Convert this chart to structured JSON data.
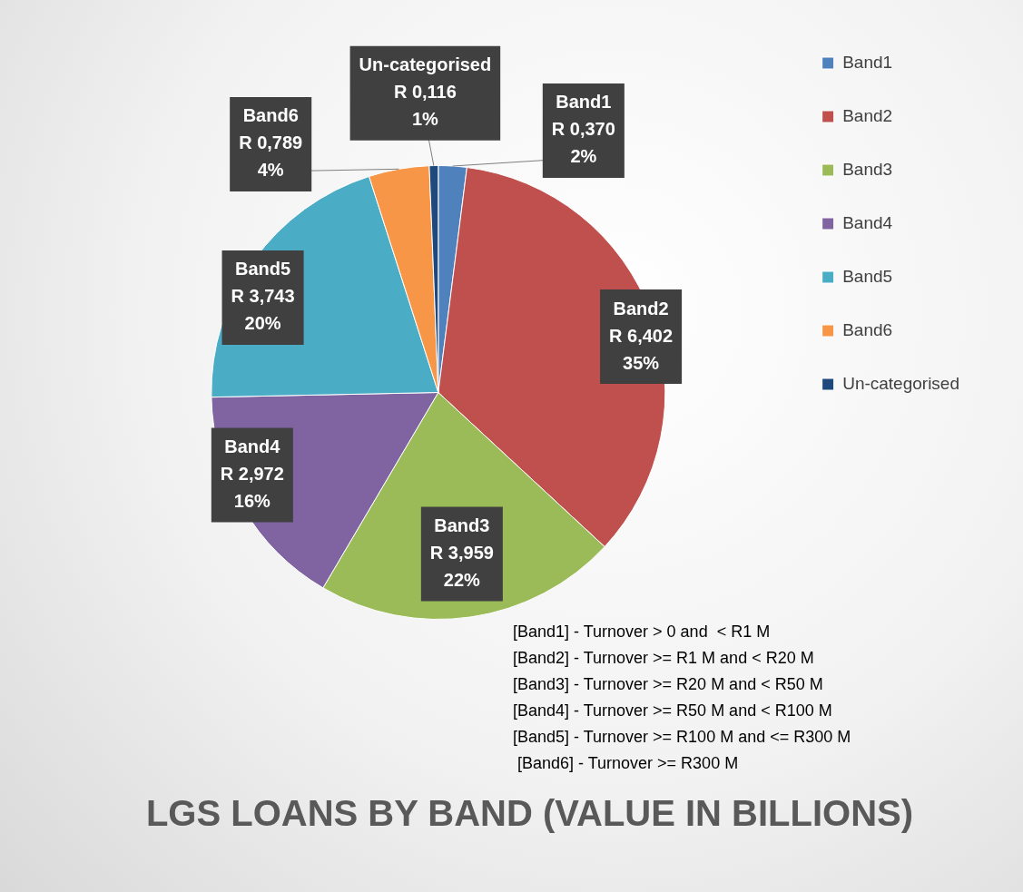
{
  "chart_data": {
    "type": "pie",
    "title": "LGS LOANS BY BAND (VALUE IN BILLIONS)",
    "categories": [
      "Band1",
      "Band2",
      "Band3",
      "Band4",
      "Band5",
      "Band6",
      "Un-categorised"
    ],
    "values": [
      0.37,
      6.402,
      3.959,
      2.972,
      3.743,
      0.789,
      0.116
    ],
    "colors": [
      "#4f81bd",
      "#c0504d",
      "#9bbb59",
      "#8064a2",
      "#4bacc6",
      "#f79646",
      "#1f497d"
    ],
    "value_labels": [
      "R 0,370\n2%",
      "R 6,402\n35%",
      "R 3,959\n22%",
      "R 2,972\n16%",
      "R 3,743\n20%",
      "R 0,789\n4%",
      "R 0,116\n1%"
    ],
    "legend": "top right",
    "annotations": [
      "[Band1] - Turnover > 0 and  < R1 M",
      "[Band2] - Turnover >= R1 M and < R20 M",
      "[Band3] - Turnover >= R20 M and < R50 M",
      "[Band4] - Turnover >= R50 M and < R100 M",
      "[Band5] - Turnover >= R100 M and <= R300 M",
      " [Band6] - Turnover >= R300 M"
    ]
  }
}
